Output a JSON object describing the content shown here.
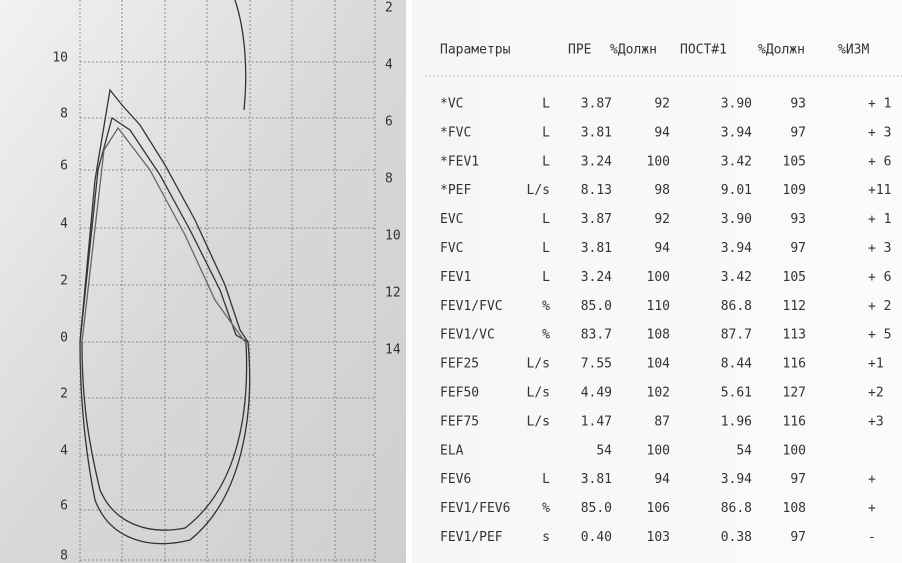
{
  "chart_panel": {
    "left_labels": [
      "10",
      "8",
      "6",
      "4",
      "2",
      "0",
      "2",
      "4",
      "6",
      "8"
    ],
    "right_labels": [
      "2",
      "4",
      "6",
      "8",
      "10",
      "12",
      "14"
    ]
  },
  "table": {
    "header": [
      "Параметры",
      "ПРЕ",
      "%Должн",
      "ПОСТ#1",
      "%Должн",
      "%ИЗМ"
    ],
    "rows": [
      {
        "param": "*VC",
        "unit": "L",
        "pre": "3.87",
        "pre_pct": "92",
        "post": "3.90",
        "post_pct": "93",
        "change": "+ 1"
      },
      {
        "param": "*FVC",
        "unit": "L",
        "pre": "3.81",
        "pre_pct": "94",
        "post": "3.94",
        "post_pct": "97",
        "change": "+ 3"
      },
      {
        "param": "*FEV1",
        "unit": "L",
        "pre": "3.24",
        "pre_pct": "100",
        "post": "3.42",
        "post_pct": "105",
        "change": "+ 6"
      },
      {
        "param": "*PEF",
        "unit": "L/s",
        "pre": "8.13",
        "pre_pct": "98",
        "post": "9.01",
        "post_pct": "109",
        "change": "+11"
      },
      {
        "param": "EVC",
        "unit": "L",
        "pre": "3.87",
        "pre_pct": "92",
        "post": "3.90",
        "post_pct": "93",
        "change": "+ 1"
      },
      {
        "param": "FVC",
        "unit": "L",
        "pre": "3.81",
        "pre_pct": "94",
        "post": "3.94",
        "post_pct": "97",
        "change": "+ 3"
      },
      {
        "param": "FEV1",
        "unit": "L",
        "pre": "3.24",
        "pre_pct": "100",
        "post": "3.42",
        "post_pct": "105",
        "change": "+ 6"
      },
      {
        "param": "FEV1/FVC",
        "unit": "%",
        "pre": "85.0",
        "pre_pct": "110",
        "post": "86.8",
        "post_pct": "112",
        "change": "+ 2"
      },
      {
        "param": "FEV1/VC",
        "unit": "%",
        "pre": "83.7",
        "pre_pct": "108",
        "post": "87.7",
        "post_pct": "113",
        "change": "+ 5"
      },
      {
        "param": "FEF25",
        "unit": "L/s",
        "pre": "7.55",
        "pre_pct": "104",
        "post": "8.44",
        "post_pct": "116",
        "change": "+1"
      },
      {
        "param": "FEF50",
        "unit": "L/s",
        "pre": "4.49",
        "pre_pct": "102",
        "post": "5.61",
        "post_pct": "127",
        "change": "+2"
      },
      {
        "param": "FEF75",
        "unit": "L/s",
        "pre": "1.47",
        "pre_pct": "87",
        "post": "1.96",
        "post_pct": "116",
        "change": "+3"
      },
      {
        "param": "ELA",
        "pre": "54",
        "pre_pct": "100",
        "post": "54",
        "post_pct": "100"
      },
      {
        "param": "FEV6",
        "unit": "L",
        "pre": "3.81",
        "pre_pct": "94",
        "post": "3.94",
        "post_pct": "97",
        "change": "+"
      },
      {
        "param": "FEV1/FEV6",
        "unit": "%",
        "pre": "85.0",
        "pre_pct": "106",
        "post": "86.8",
        "post_pct": "108",
        "change": "+"
      },
      {
        "param": "FEV1/PEF",
        "unit": "s",
        "pre": "0.40",
        "pre_pct": "103",
        "post": "0.38",
        "post_pct": "97",
        "change": "-"
      }
    ]
  }
}
